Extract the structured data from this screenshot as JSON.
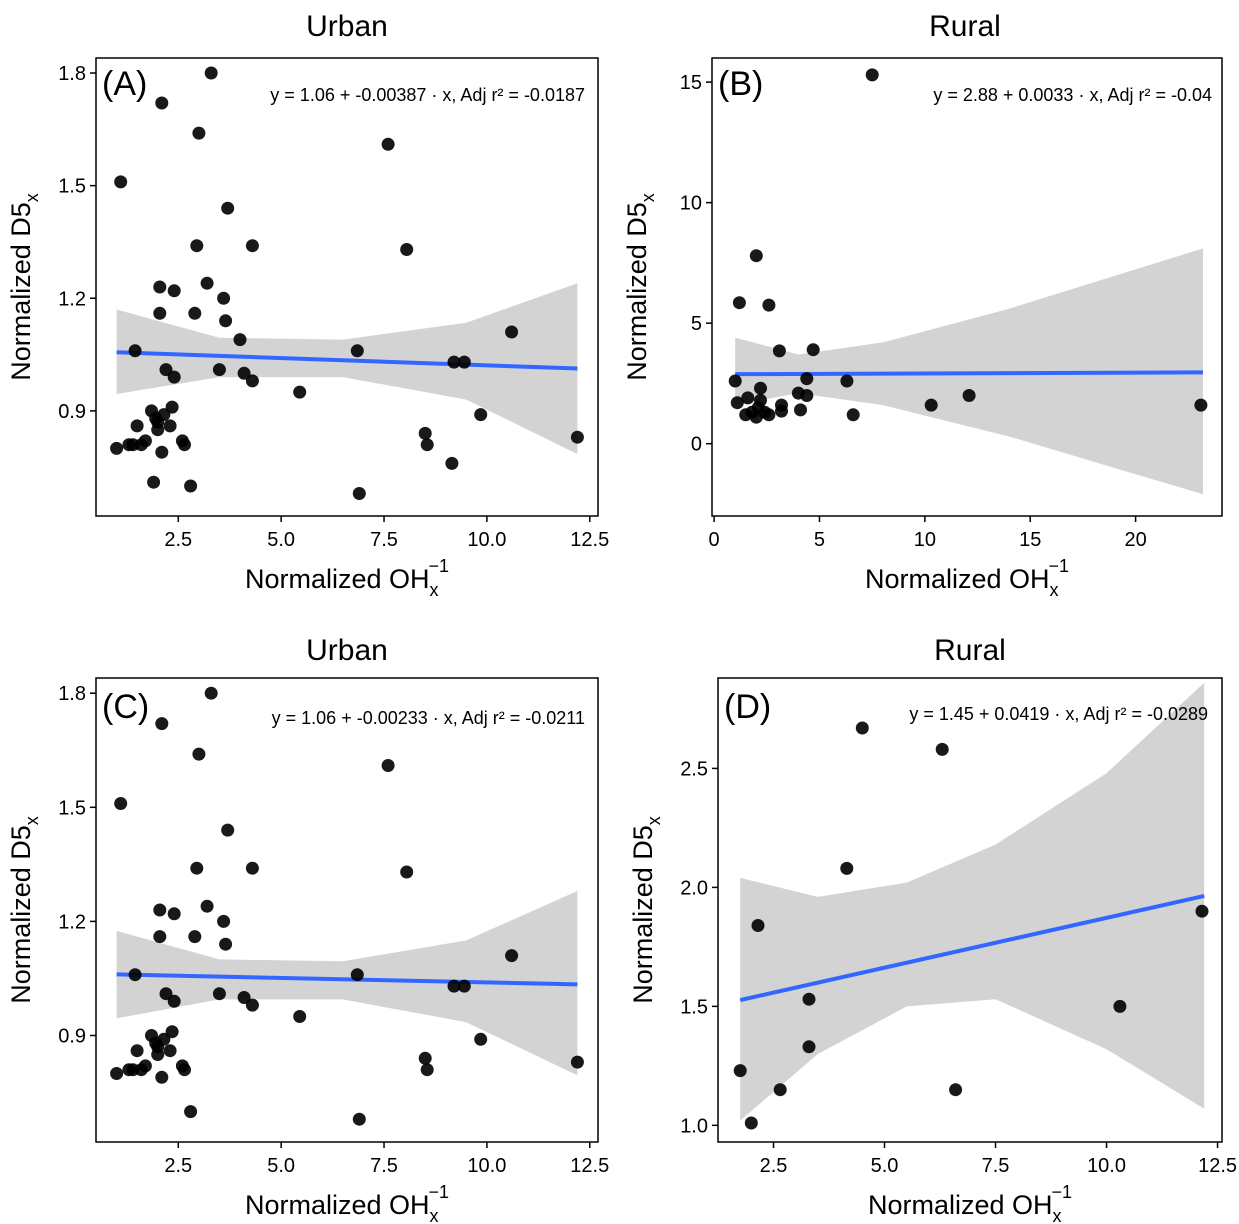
{
  "chart_data": [
    {
      "id": "A",
      "type": "scatter",
      "title": "Urban",
      "panel_label": "(A)",
      "xlabel_main": "Normalized  OH",
      "xlabel_sub": "x",
      "xlabel_sup": "−1",
      "ylabel_main": "Normalized  D5",
      "ylabel_sub": "x",
      "equation": "y = 1.06 + -0.00387 · x,  Adj r² = -0.0187",
      "xlim": [
        0.5,
        12.7
      ],
      "ylim": [
        0.62,
        1.84
      ],
      "xticks": [
        2.5,
        5.0,
        7.5,
        10.0,
        12.5
      ],
      "xtick_labels": [
        "2.5",
        "5.0",
        "7.5",
        "10.0",
        "12.5"
      ],
      "yticks": [
        0.9,
        1.2,
        1.5,
        1.8
      ],
      "ytick_labels": [
        "0.9",
        "1.2",
        "1.5",
        "1.8"
      ],
      "fit": {
        "intercept": 1.06,
        "slope": -0.00387,
        "x_range": [
          1.0,
          12.2
        ]
      },
      "confidence_band": {
        "x": [
          1.0,
          3.5,
          6.5,
          9.5,
          12.2
        ],
        "lower": [
          0.945,
          0.99,
          0.99,
          0.93,
          0.785
        ],
        "upper": [
          1.17,
          1.095,
          1.09,
          1.135,
          1.24
        ]
      },
      "points": [
        [
          1.0,
          0.8
        ],
        [
          1.1,
          1.51
        ],
        [
          1.3,
          0.81
        ],
        [
          1.4,
          0.81
        ],
        [
          1.45,
          1.06
        ],
        [
          1.5,
          0.86
        ],
        [
          1.6,
          0.81
        ],
        [
          1.7,
          0.82
        ],
        [
          1.85,
          0.9
        ],
        [
          1.9,
          0.71
        ],
        [
          1.95,
          0.88
        ],
        [
          2.0,
          0.85
        ],
        [
          2.0,
          0.87
        ],
        [
          2.05,
          1.23
        ],
        [
          2.05,
          1.16
        ],
        [
          2.1,
          0.79
        ],
        [
          2.1,
          1.72
        ],
        [
          2.15,
          0.89
        ],
        [
          2.2,
          1.01
        ],
        [
          2.3,
          0.86
        ],
        [
          2.35,
          0.91
        ],
        [
          2.4,
          0.99
        ],
        [
          2.4,
          1.22
        ],
        [
          2.6,
          0.82
        ],
        [
          2.65,
          0.81
        ],
        [
          2.8,
          0.7
        ],
        [
          2.9,
          1.16
        ],
        [
          2.95,
          1.34
        ],
        [
          3.0,
          1.64
        ],
        [
          3.2,
          1.24
        ],
        [
          3.3,
          1.8
        ],
        [
          3.5,
          1.01
        ],
        [
          3.6,
          1.2
        ],
        [
          3.65,
          1.14
        ],
        [
          3.7,
          1.44
        ],
        [
          4.0,
          1.09
        ],
        [
          4.1,
          1.0
        ],
        [
          4.3,
          0.98
        ],
        [
          4.3,
          1.34
        ],
        [
          5.45,
          0.95
        ],
        [
          6.85,
          1.06
        ],
        [
          6.9,
          0.68
        ],
        [
          7.6,
          1.61
        ],
        [
          8.05,
          1.33
        ],
        [
          8.5,
          0.84
        ],
        [
          8.55,
          0.81
        ],
        [
          9.15,
          0.76
        ],
        [
          9.2,
          1.03
        ],
        [
          9.45,
          1.03
        ],
        [
          9.85,
          0.89
        ],
        [
          10.6,
          1.11
        ],
        [
          12.2,
          0.83
        ]
      ]
    },
    {
      "id": "B",
      "type": "scatter",
      "title": "Rural",
      "panel_label": "(B)",
      "xlabel_main": "Normalized  OH",
      "xlabel_sub": "x",
      "xlabel_sup": "−1",
      "ylabel_main": "Normalized  D5",
      "ylabel_sub": "x",
      "equation": "y = 2.88 + 0.0033 · x,  Adj r² = -0.04",
      "xlim": [
        -0.1,
        24.1
      ],
      "ylim": [
        -3.0,
        16.0
      ],
      "xticks": [
        0,
        5,
        10,
        15,
        20
      ],
      "xtick_labels": [
        "0",
        "5",
        "10",
        "15",
        "20"
      ],
      "yticks": [
        0,
        5,
        10,
        15
      ],
      "ytick_labels": [
        "0",
        "5",
        "10",
        "15"
      ],
      "fit": {
        "intercept": 2.88,
        "slope": 0.0033,
        "x_range": [
          1.0,
          23.2
        ]
      },
      "confidence_band": {
        "x": [
          1.0,
          4.0,
          8.0,
          14.0,
          23.2
        ],
        "lower": [
          1.6,
          2.1,
          1.6,
          0.3,
          -2.1
        ],
        "upper": [
          4.4,
          3.7,
          4.2,
          5.6,
          8.1
        ]
      },
      "points": [
        [
          1.0,
          2.6
        ],
        [
          1.1,
          1.7
        ],
        [
          1.2,
          5.85
        ],
        [
          1.5,
          1.2
        ],
        [
          1.6,
          1.9
        ],
        [
          1.8,
          1.3
        ],
        [
          2.0,
          7.8
        ],
        [
          2.0,
          1.1
        ],
        [
          2.1,
          1.5
        ],
        [
          2.2,
          1.8
        ],
        [
          2.2,
          2.3
        ],
        [
          2.4,
          1.3
        ],
        [
          2.6,
          5.75
        ],
        [
          2.6,
          1.2
        ],
        [
          3.1,
          3.85
        ],
        [
          3.2,
          1.6
        ],
        [
          3.2,
          1.35
        ],
        [
          4.0,
          2.1
        ],
        [
          4.1,
          1.4
        ],
        [
          4.4,
          2.7
        ],
        [
          4.4,
          2.0
        ],
        [
          4.7,
          3.9
        ],
        [
          6.3,
          2.6
        ],
        [
          6.6,
          1.2
        ],
        [
          7.5,
          15.3
        ],
        [
          10.3,
          1.6
        ],
        [
          12.1,
          2.0
        ],
        [
          23.1,
          1.6
        ]
      ]
    },
    {
      "id": "C",
      "type": "scatter",
      "title": "Urban",
      "panel_label": "(C)",
      "xlabel_main": "Normalized  OH",
      "xlabel_sub": "x",
      "xlabel_sup": "−1",
      "ylabel_main": "Normalized  D5",
      "ylabel_sub": "x",
      "equation": "y = 1.06 + -0.00233 · x,  Adj r² = -0.0211",
      "xlim": [
        0.5,
        12.7
      ],
      "ylim": [
        0.62,
        1.84
      ],
      "xticks": [
        2.5,
        5.0,
        7.5,
        10.0,
        12.5
      ],
      "xtick_labels": [
        "2.5",
        "5.0",
        "7.5",
        "10.0",
        "12.5"
      ],
      "yticks": [
        0.9,
        1.2,
        1.5,
        1.8
      ],
      "ytick_labels": [
        "0.9",
        "1.2",
        "1.5",
        "1.8"
      ],
      "fit": {
        "intercept": 1.063,
        "slope": -0.00233,
        "x_range": [
          1.0,
          12.2
        ]
      },
      "confidence_band": {
        "x": [
          1.0,
          3.5,
          6.5,
          9.5,
          12.2
        ],
        "lower": [
          0.945,
          0.995,
          0.995,
          0.935,
          0.795
        ],
        "upper": [
          1.175,
          1.1,
          1.095,
          1.15,
          1.28
        ]
      },
      "points": [
        [
          1.0,
          0.8
        ],
        [
          1.1,
          1.51
        ],
        [
          1.3,
          0.81
        ],
        [
          1.4,
          0.81
        ],
        [
          1.45,
          1.06
        ],
        [
          1.5,
          0.86
        ],
        [
          1.6,
          0.81
        ],
        [
          1.7,
          0.82
        ],
        [
          1.85,
          0.9
        ],
        [
          1.95,
          0.88
        ],
        [
          2.0,
          0.85
        ],
        [
          2.0,
          0.87
        ],
        [
          2.05,
          1.23
        ],
        [
          2.05,
          1.16
        ],
        [
          2.1,
          0.79
        ],
        [
          2.1,
          1.72
        ],
        [
          2.15,
          0.89
        ],
        [
          2.2,
          1.01
        ],
        [
          2.3,
          0.86
        ],
        [
          2.35,
          0.91
        ],
        [
          2.4,
          0.99
        ],
        [
          2.4,
          1.22
        ],
        [
          2.6,
          0.82
        ],
        [
          2.65,
          0.81
        ],
        [
          2.8,
          0.7
        ],
        [
          2.9,
          1.16
        ],
        [
          2.95,
          1.34
        ],
        [
          3.0,
          1.64
        ],
        [
          3.2,
          1.24
        ],
        [
          3.3,
          1.8
        ],
        [
          3.5,
          1.01
        ],
        [
          3.6,
          1.2
        ],
        [
          3.65,
          1.14
        ],
        [
          3.7,
          1.44
        ],
        [
          4.1,
          1.0
        ],
        [
          4.3,
          0.98
        ],
        [
          4.3,
          1.34
        ],
        [
          5.45,
          0.95
        ],
        [
          6.85,
          1.06
        ],
        [
          6.9,
          0.68
        ],
        [
          7.6,
          1.61
        ],
        [
          8.05,
          1.33
        ],
        [
          8.5,
          0.84
        ],
        [
          8.55,
          0.81
        ],
        [
          9.2,
          1.03
        ],
        [
          9.45,
          1.03
        ],
        [
          9.85,
          0.89
        ],
        [
          10.6,
          1.11
        ],
        [
          12.2,
          0.83
        ]
      ]
    },
    {
      "id": "D",
      "type": "scatter",
      "title": "Rural",
      "panel_label": "(D)",
      "xlabel_main": "Normalized  OH",
      "xlabel_sub": "x",
      "xlabel_sup": "−1",
      "ylabel_main": "Normalized  D5",
      "ylabel_sub": "x",
      "equation": "y = 1.45 + 0.0419 · x,  Adj r² = -0.0289",
      "xlim": [
        1.25,
        12.6
      ],
      "ylim": [
        0.93,
        2.88
      ],
      "xticks": [
        2.5,
        5.0,
        7.5,
        10.0,
        12.5
      ],
      "xtick_labels": [
        "2.5",
        "5.0",
        "7.5",
        "10.0",
        "12.5"
      ],
      "yticks": [
        1.0,
        1.5,
        2.0,
        2.5
      ],
      "ytick_labels": [
        "1.0",
        "1.5",
        "2.0",
        "2.5"
      ],
      "fit": {
        "intercept": 1.453,
        "slope": 0.0419,
        "x_range": [
          1.75,
          12.2
        ]
      },
      "confidence_band": {
        "x": [
          1.75,
          3.5,
          5.5,
          7.5,
          10.0,
          12.2
        ],
        "lower": [
          1.02,
          1.3,
          1.5,
          1.53,
          1.32,
          1.07
        ],
        "upper": [
          2.04,
          1.96,
          2.02,
          2.18,
          2.48,
          2.86
        ]
      },
      "points": [
        [
          1.75,
          1.23
        ],
        [
          2.0,
          1.01
        ],
        [
          2.15,
          1.84
        ],
        [
          2.65,
          1.15
        ],
        [
          3.3,
          1.53
        ],
        [
          3.3,
          1.33
        ],
        [
          4.15,
          2.08
        ],
        [
          4.5,
          2.67
        ],
        [
          6.3,
          2.58
        ],
        [
          6.6,
          1.15
        ],
        [
          10.3,
          1.5
        ],
        [
          12.15,
          1.9
        ]
      ]
    }
  ],
  "colors": {
    "point": "#000000",
    "fit_line": "#3366ff",
    "band": "#d3d3d3",
    "axis": "#000000"
  }
}
